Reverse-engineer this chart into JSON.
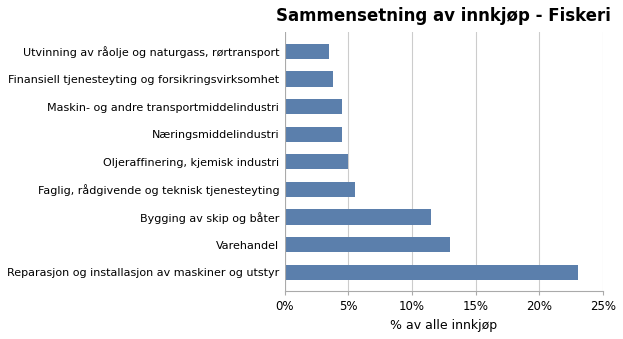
{
  "title": "Sammensetning av innkjøp - Fiskeri",
  "categories": [
    "Reparasjon og installasjon av maskiner og utstyr",
    "Varehandel",
    "Bygging av skip og båter",
    "Faglig, rådgivende og teknisk tjenesteyting",
    "Oljeraffinering, kjemisk industri",
    "Næringsmiddelindustri",
    "Maskin- og andre transportmiddelindustri",
    "Finansiell tjenesteyting og forsikringsvirksomhet",
    "Utvinning av råolje og naturgass, rørtransport"
  ],
  "values": [
    0.23,
    0.13,
    0.115,
    0.055,
    0.05,
    0.045,
    0.045,
    0.038,
    0.035
  ],
  "bar_color": "#5b7fac",
  "xlabel": "% av alle innkjøp",
  "xlim": [
    0,
    0.25
  ],
  "xticks": [
    0.0,
    0.05,
    0.1,
    0.15,
    0.2,
    0.25
  ],
  "xtick_labels": [
    "0%",
    "5%",
    "10%",
    "15%",
    "20%",
    "25%"
  ],
  "title_fontsize": 12,
  "label_fontsize": 8.0,
  "tick_fontsize": 8.5,
  "xlabel_fontsize": 9,
  "background_color": "#ffffff"
}
